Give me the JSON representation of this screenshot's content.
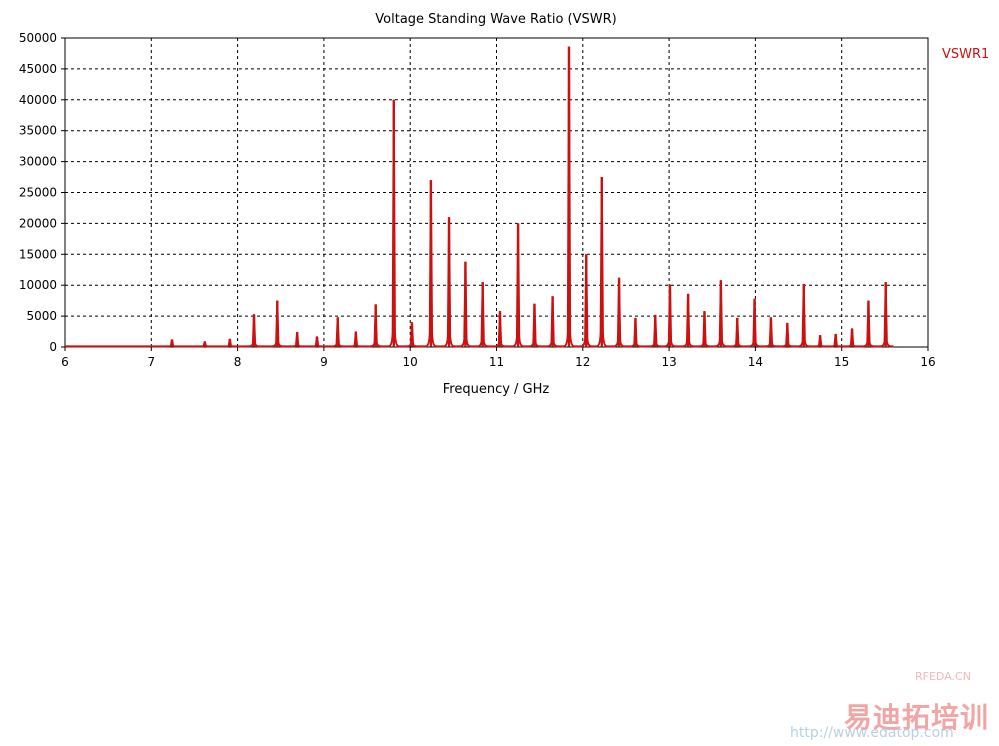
{
  "chart_data": {
    "type": "line",
    "title": "Voltage Standing Wave Ratio (VSWR)",
    "xlabel": "Frequency / GHz",
    "ylabel": "",
    "xlim": [
      6,
      16
    ],
    "ylim": [
      0,
      50000
    ],
    "xticks": [
      "6",
      "7",
      "8",
      "9",
      "10",
      "11",
      "12",
      "13",
      "14",
      "15",
      "16"
    ],
    "yticks": [
      "0",
      "5000",
      "10000",
      "15000",
      "20000",
      "25000",
      "30000",
      "35000",
      "40000",
      "45000",
      "50000"
    ],
    "grid": true,
    "legend_position": "top-right",
    "series": [
      {
        "name": "VSWR1",
        "color": "#cc1111",
        "baseline": 100,
        "data_end_x": 15.6,
        "peaks": [
          {
            "x": 7.24,
            "y": 1200
          },
          {
            "x": 7.62,
            "y": 900
          },
          {
            "x": 7.91,
            "y": 1300
          },
          {
            "x": 8.19,
            "y": 5300
          },
          {
            "x": 8.46,
            "y": 7500
          },
          {
            "x": 8.69,
            "y": 2400
          },
          {
            "x": 8.92,
            "y": 1700
          },
          {
            "x": 9.16,
            "y": 4800
          },
          {
            "x": 9.37,
            "y": 2500
          },
          {
            "x": 9.6,
            "y": 6900
          },
          {
            "x": 9.81,
            "y": 40000
          },
          {
            "x": 10.02,
            "y": 4000
          },
          {
            "x": 10.24,
            "y": 27000
          },
          {
            "x": 10.45,
            "y": 21000
          },
          {
            "x": 10.64,
            "y": 13800
          },
          {
            "x": 10.84,
            "y": 10500
          },
          {
            "x": 11.04,
            "y": 5800
          },
          {
            "x": 11.25,
            "y": 20000
          },
          {
            "x": 11.44,
            "y": 7000
          },
          {
            "x": 11.65,
            "y": 8200
          },
          {
            "x": 11.84,
            "y": 48600
          },
          {
            "x": 12.04,
            "y": 15000
          },
          {
            "x": 12.22,
            "y": 27500
          },
          {
            "x": 12.42,
            "y": 11200
          },
          {
            "x": 12.61,
            "y": 4700
          },
          {
            "x": 12.84,
            "y": 5200
          },
          {
            "x": 13.01,
            "y": 10100
          },
          {
            "x": 13.22,
            "y": 8600
          },
          {
            "x": 13.41,
            "y": 5800
          },
          {
            "x": 13.6,
            "y": 10800
          },
          {
            "x": 13.79,
            "y": 4700
          },
          {
            "x": 13.99,
            "y": 7800
          },
          {
            "x": 14.18,
            "y": 4800
          },
          {
            "x": 14.37,
            "y": 3900
          },
          {
            "x": 14.56,
            "y": 10200
          },
          {
            "x": 14.75,
            "y": 1900
          },
          {
            "x": 14.93,
            "y": 2100
          },
          {
            "x": 15.12,
            "y": 3000
          },
          {
            "x": 15.31,
            "y": 7500
          },
          {
            "x": 15.51,
            "y": 10500
          }
        ]
      }
    ]
  },
  "watermark": {
    "line1": "RFEDA.CN",
    "line2": "易迪拓培训",
    "line3": "http://www.edatop.com"
  }
}
